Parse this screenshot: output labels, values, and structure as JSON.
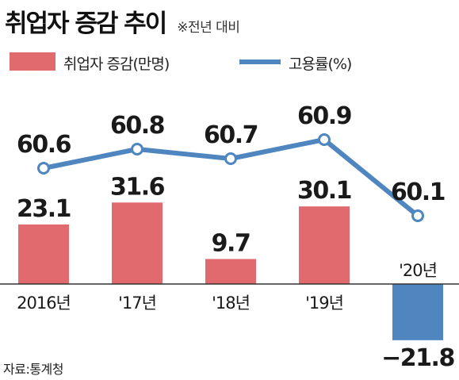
{
  "header": {
    "title": "취업자 증감 추이",
    "subtitle": "※전년 대비"
  },
  "legend": {
    "bar_label": "취업자 증감(만명)",
    "line_label": "고용률(%)"
  },
  "source": "자료:통계청",
  "colors": {
    "bar_positive": "#e06a6e",
    "bar_negative": "#4f86c0",
    "line": "#4f86c0",
    "marker_fill": "#ffffff"
  },
  "chart_data": {
    "type": "bar",
    "categories": [
      "2016년",
      "'17년",
      "'18년",
      "'19년",
      "'20년"
    ],
    "series": [
      {
        "name": "취업자 증감(만명)",
        "type": "bar",
        "values": [
          23.1,
          31.6,
          9.7,
          30.1,
          -21.8
        ]
      },
      {
        "name": "고용률(%)",
        "type": "line",
        "values": [
          60.6,
          60.8,
          60.7,
          60.9,
          60.1
        ]
      }
    ],
    "bar_labels": [
      "23.1",
      "31.6",
      "9.7",
      "30.1",
      "−21.8"
    ],
    "line_labels": [
      "60.6",
      "60.8",
      "60.7",
      "60.9",
      "60.1"
    ],
    "legend_position": "top",
    "grid": false
  }
}
